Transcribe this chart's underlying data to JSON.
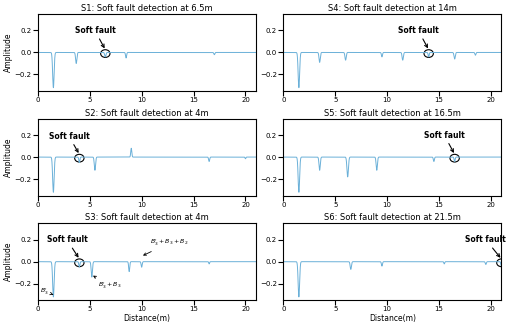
{
  "titles": [
    "S1: Soft fault detection at 6.5m",
    "S4: Soft fault detection at 14m",
    "S2: Soft fault detection at 4m",
    "S5: Soft fault detection at 16.5m",
    "S3: Soft fault detection at 4m",
    "S6: Soft fault detection at 21.5m"
  ],
  "subplot_keys": [
    "S1",
    "S4",
    "S2",
    "S5",
    "S3",
    "S6"
  ],
  "xlabel": "Distance(m)",
  "ylabel": "Amplitude",
  "xlim": [
    0,
    21
  ],
  "ylim": [
    -0.35,
    0.35
  ],
  "yticks": [
    -0.2,
    0,
    0.2
  ],
  "xticks": [
    0,
    5,
    10,
    15,
    20
  ],
  "line_color": "#6ab0d8",
  "title_fontsize": 6.0,
  "label_fontsize": 5.5,
  "tick_fontsize": 5.0
}
